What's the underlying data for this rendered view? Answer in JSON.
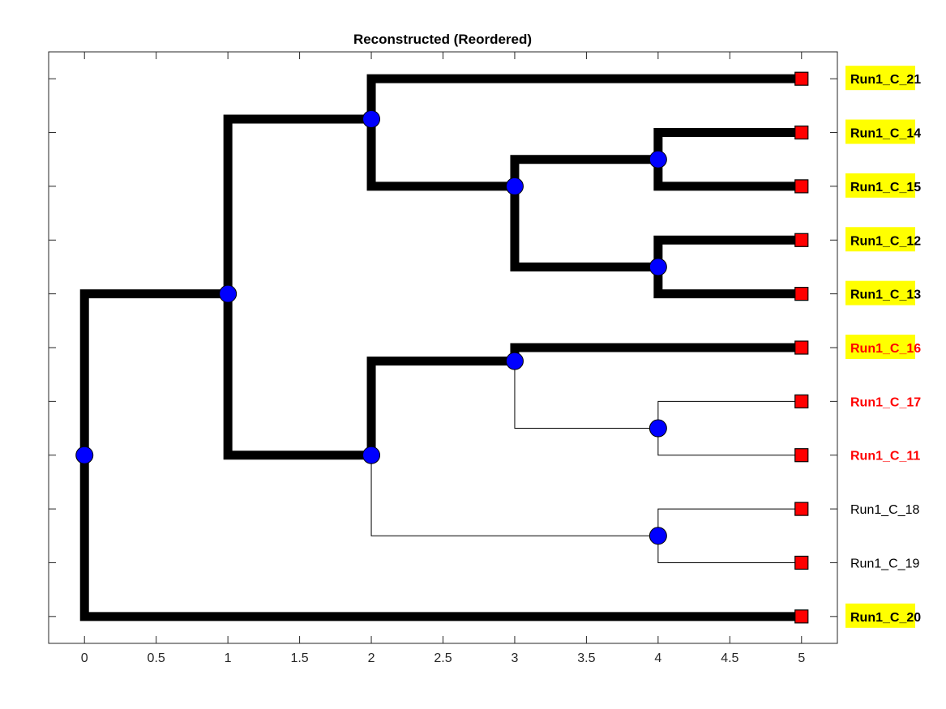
{
  "chart_data": {
    "type": "dendrogram",
    "title": "Reconstructed (Reordered)",
    "xlim": [
      -0.25,
      5.25
    ],
    "ylim": [
      0.5,
      11.5
    ],
    "xticks": [
      "0",
      "0.5",
      "1",
      "1.5",
      "2",
      "2.5",
      "3",
      "3.5",
      "4",
      "4.5",
      "5"
    ],
    "grid": false,
    "colors": {
      "edge": "#000000",
      "internal_node": "#0000ff",
      "leaf_node": "#ff0000",
      "highlight_bg": "#ffff00",
      "red_label": "#ff0000",
      "plain_label": "#000000"
    },
    "leaves": [
      {
        "label": "Run1_C_21",
        "x": 5,
        "y": 11,
        "style": "yellow"
      },
      {
        "label": "Run1_C_14",
        "x": 5,
        "y": 10,
        "style": "yellow"
      },
      {
        "label": "Run1_C_15",
        "x": 5,
        "y": 9,
        "style": "yellow"
      },
      {
        "label": "Run1_C_12",
        "x": 5,
        "y": 8,
        "style": "yellow"
      },
      {
        "label": "Run1_C_13",
        "x": 5,
        "y": 7,
        "style": "yellow"
      },
      {
        "label": "Run1_C_16",
        "x": 5,
        "y": 6,
        "style": "yellow-red"
      },
      {
        "label": "Run1_C_17",
        "x": 5,
        "y": 5,
        "style": "red"
      },
      {
        "label": "Run1_C_11",
        "x": 5,
        "y": 4,
        "style": "red"
      },
      {
        "label": "Run1_C_18",
        "x": 5,
        "y": 3,
        "style": "plain"
      },
      {
        "label": "Run1_C_19",
        "x": 5,
        "y": 2,
        "style": "plain"
      },
      {
        "label": "Run1_C_20",
        "x": 5,
        "y": 1,
        "style": "yellow"
      }
    ],
    "internal_nodes": [
      {
        "id": "root",
        "x": 0,
        "y": 4
      },
      {
        "id": "n1",
        "x": 1,
        "y": 7
      },
      {
        "id": "n2a",
        "x": 2,
        "y": 10.25
      },
      {
        "id": "n2b",
        "x": 2,
        "y": 4
      },
      {
        "id": "n3a",
        "x": 3,
        "y": 9
      },
      {
        "id": "n3b",
        "x": 3,
        "y": 5.75
      },
      {
        "id": "n4a",
        "x": 4,
        "y": 9.5
      },
      {
        "id": "n4b",
        "x": 4,
        "y": 7.5
      },
      {
        "id": "n4c",
        "x": 4,
        "y": 4.5
      },
      {
        "id": "n4d",
        "x": 4,
        "y": 2.5
      }
    ],
    "edges": [
      {
        "from": "root",
        "to": "n1",
        "bold": true
      },
      {
        "from": "root",
        "to": "Run1_C_20",
        "bold": true
      },
      {
        "from": "n1",
        "to": "n2a",
        "bold": true
      },
      {
        "from": "n1",
        "to": "n2b",
        "bold": true
      },
      {
        "from": "n2a",
        "to": "Run1_C_21",
        "bold": true
      },
      {
        "from": "n2a",
        "to": "n3a",
        "bold": true
      },
      {
        "from": "n3a",
        "to": "n4a",
        "bold": true
      },
      {
        "from": "n3a",
        "to": "n4b",
        "bold": true
      },
      {
        "from": "n4a",
        "to": "Run1_C_14",
        "bold": true
      },
      {
        "from": "n4a",
        "to": "Run1_C_15",
        "bold": true
      },
      {
        "from": "n4b",
        "to": "Run1_C_12",
        "bold": true
      },
      {
        "from": "n4b",
        "to": "Run1_C_13",
        "bold": true
      },
      {
        "from": "n2b",
        "to": "n3b",
        "bold": true
      },
      {
        "from": "n2b",
        "to": "n4d",
        "bold": false
      },
      {
        "from": "n3b",
        "to": "Run1_C_16",
        "bold": true
      },
      {
        "from": "n3b",
        "to": "n4c",
        "bold": false
      },
      {
        "from": "n4c",
        "to": "Run1_C_17",
        "bold": false
      },
      {
        "from": "n4c",
        "to": "Run1_C_11",
        "bold": false
      },
      {
        "from": "n4d",
        "to": "Run1_C_18",
        "bold": false
      },
      {
        "from": "n4d",
        "to": "Run1_C_19",
        "bold": false
      }
    ]
  }
}
